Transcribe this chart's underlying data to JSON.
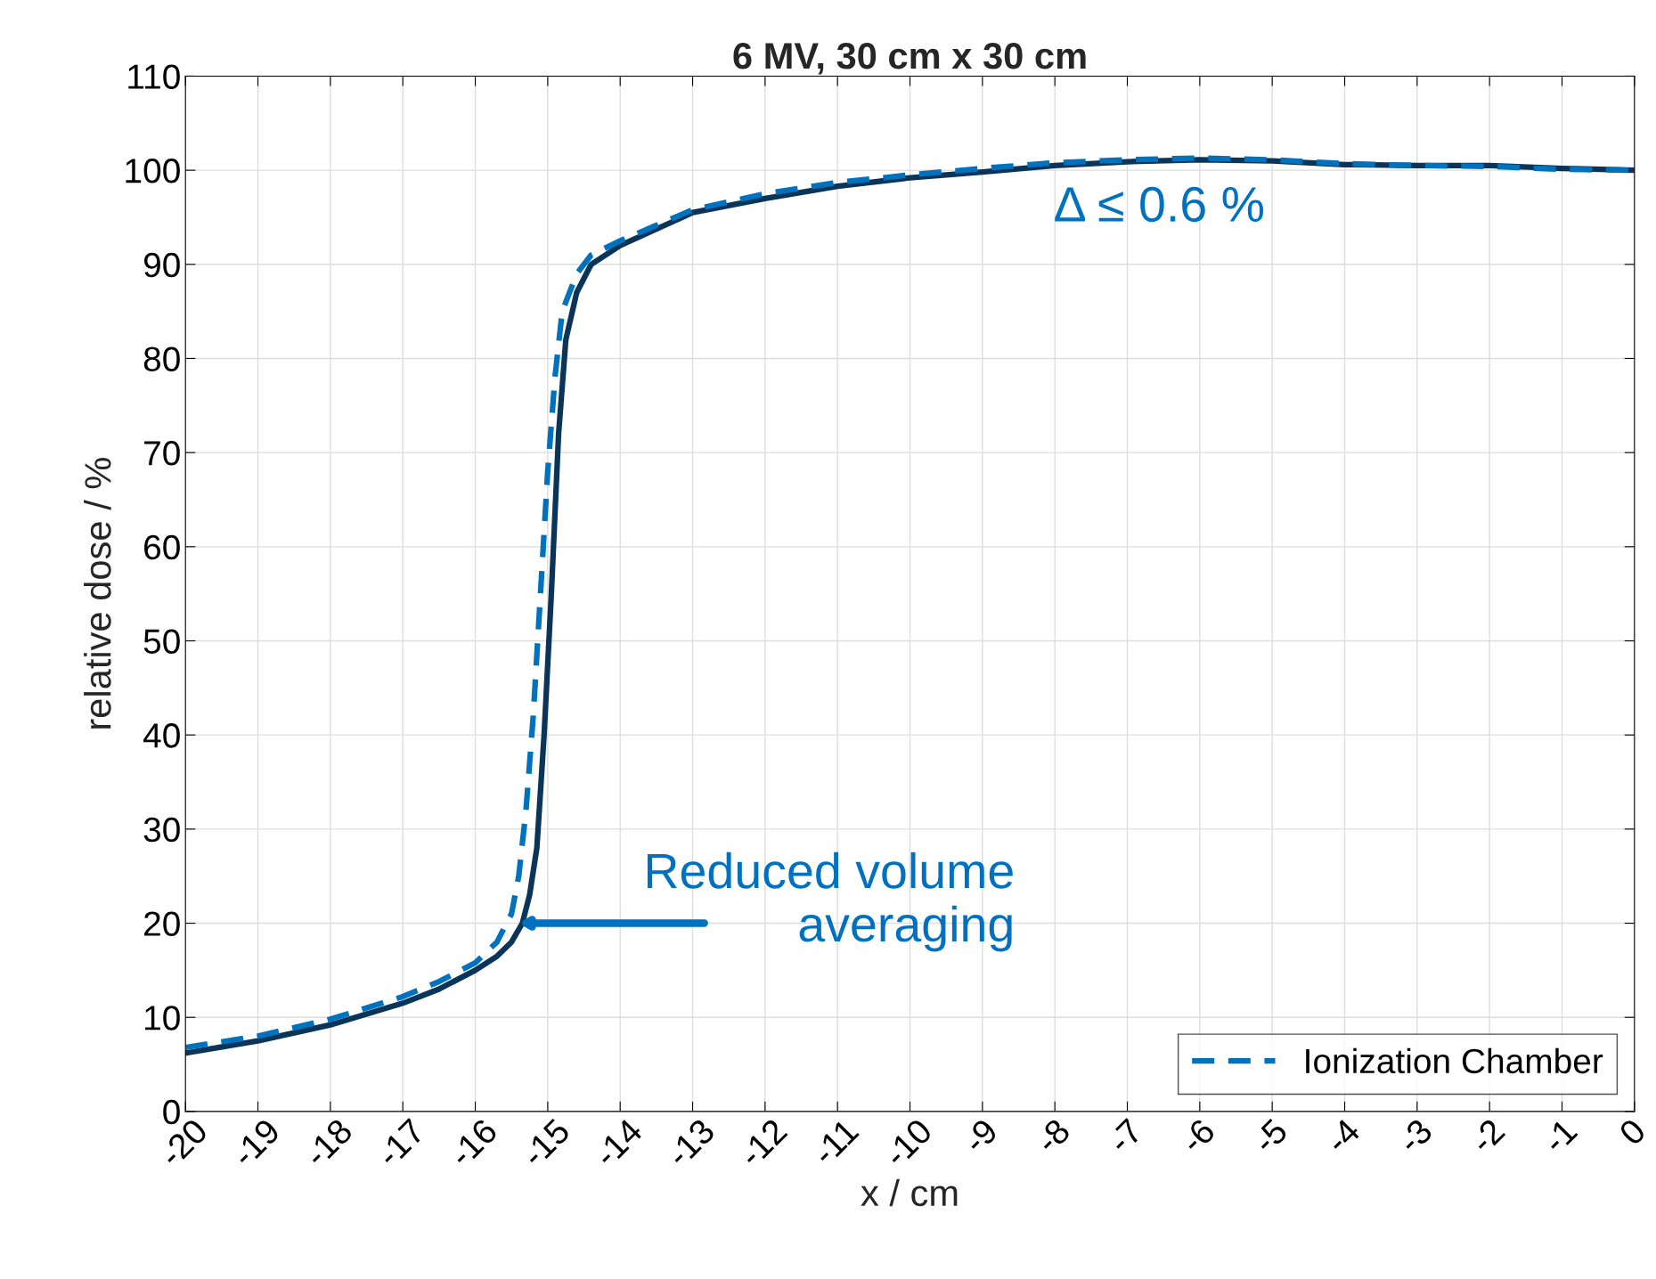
{
  "chart_data": {
    "type": "line",
    "title": "6 MV, 30 cm x 30 cm",
    "xlabel": "x / cm",
    "ylabel": "relative dose / %",
    "series": [
      {
        "color": "#0b3558",
        "line_style": "solid",
        "x": [
          -20,
          -19,
          -18,
          -17,
          -16.5,
          -16,
          -15.7,
          -15.5,
          -15.35,
          -15.25,
          -15.15,
          -15.05,
          -14.95,
          -14.85,
          -14.75,
          -14.6,
          -14.4,
          -14,
          -13,
          -12,
          -11,
          -10,
          -9,
          -8,
          -7,
          -6,
          -5,
          -4,
          -3,
          -2,
          -1,
          0
        ],
        "values": [
          6.2,
          7.5,
          9.2,
          11.5,
          13,
          15,
          16.5,
          18,
          20,
          23,
          28,
          40,
          55,
          72,
          82,
          87,
          90,
          92,
          95.5,
          97,
          98.3,
          99.2,
          99.8,
          100.5,
          100.9,
          101.1,
          101,
          100.6,
          100.5,
          100.5,
          100.2,
          100
        ]
      },
      {
        "name": "Ionization Chamber",
        "color": "#0072bd",
        "line_style": "dashed",
        "x": [
          -20,
          -19,
          -18,
          -17,
          -16.5,
          -16,
          -15.7,
          -15.5,
          -15.4,
          -15.3,
          -15.2,
          -15.1,
          -15,
          -14.9,
          -14.8,
          -14.6,
          -14.4,
          -14,
          -13,
          -12,
          -11,
          -10,
          -9,
          -8,
          -7,
          -6,
          -5,
          -4,
          -3,
          -2,
          -1,
          0
        ],
        "values": [
          6.8,
          8,
          9.8,
          12.2,
          13.8,
          15.8,
          18,
          21,
          25,
          32,
          42,
          55,
          68,
          78,
          85,
          89,
          91,
          92.5,
          95.8,
          97.5,
          98.7,
          99.5,
          100.2,
          100.8,
          101.1,
          101.3,
          101.1,
          100.7,
          100.5,
          100.4,
          100.1,
          100
        ]
      }
    ],
    "annotations": [
      {
        "text": "Reduced volume\naveraging",
        "x": -15.4,
        "y": 20
      },
      "Δ ≤ 0.6 %"
    ],
    "xlim": [
      -20,
      0
    ],
    "xticks": [
      -20,
      -19,
      -18,
      -17,
      -16,
      -15,
      -14,
      -13,
      -12,
      -11,
      -10,
      -9,
      -8,
      -7,
      -6,
      -5,
      -4,
      -3,
      -2,
      -1,
      0
    ],
    "ylim": [
      0,
      110
    ],
    "yticks": [
      0,
      10,
      20,
      30,
      40,
      50,
      60,
      70,
      80,
      90,
      100,
      110
    ],
    "grid": true,
    "legend": "bottom right"
  }
}
